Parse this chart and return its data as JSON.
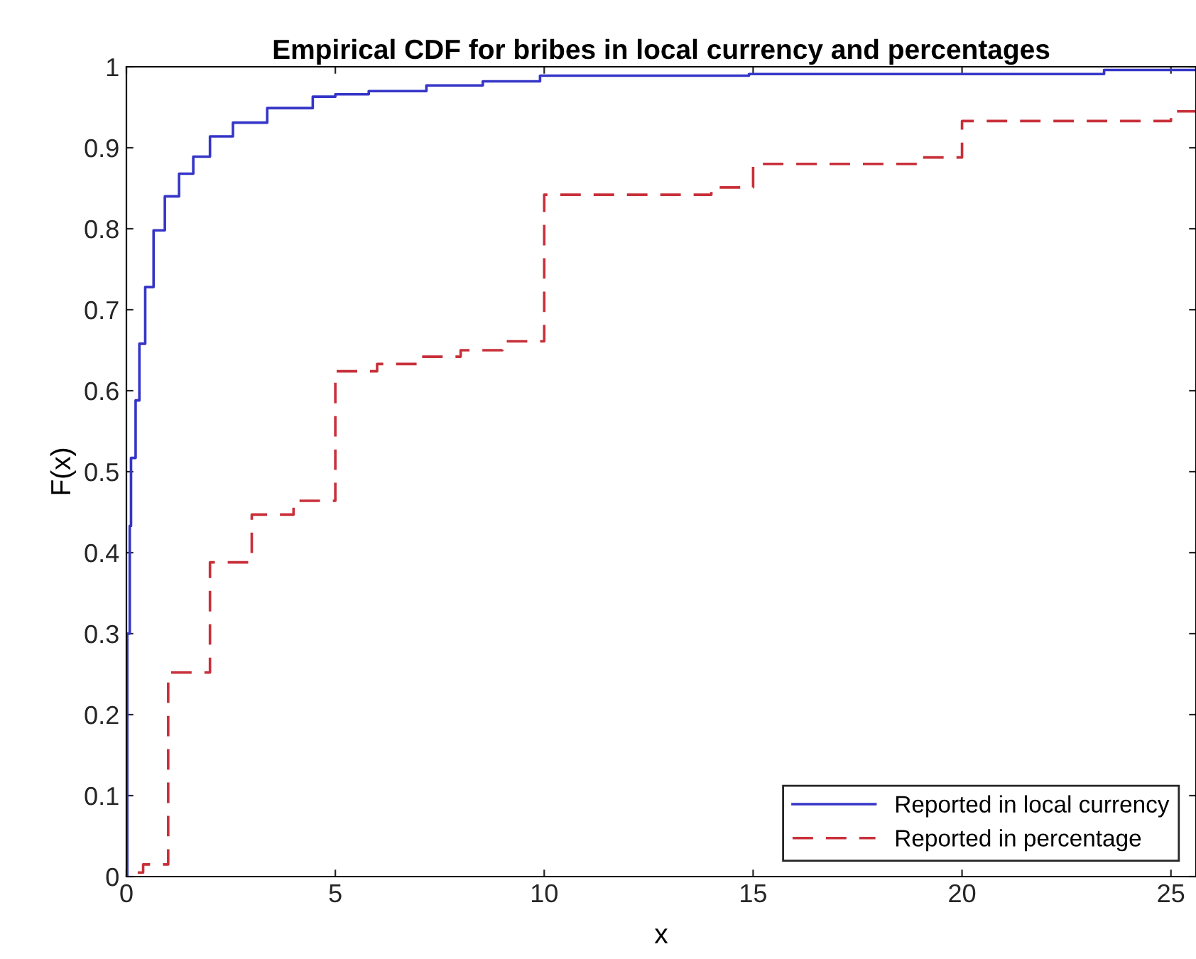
{
  "chart_data": {
    "type": "step",
    "title": "Empirical CDF for bribes in local currency and percentages",
    "xlabel": "x",
    "ylabel": "F(x)",
    "series": [
      {
        "name": "Reported in local currency",
        "color": "#3535c8",
        "line_style": "solid",
        "x": [
          0,
          0.02,
          0.08,
          0.11,
          0.22,
          0.31,
          0.45,
          0.65,
          0.92,
          1.26,
          1.6,
          2.0,
          2.55,
          3.37,
          4.46,
          5.0,
          5.8,
          7.18,
          8.53,
          9.9,
          14.9,
          23.4,
          25.6
        ],
        "values": [
          0,
          0.3,
          0.433,
          0.517,
          0.588,
          0.658,
          0.728,
          0.798,
          0.84,
          0.868,
          0.889,
          0.914,
          0.931,
          0.949,
          0.963,
          0.966,
          0.97,
          0.977,
          0.982,
          0.989,
          0.991,
          0.996,
          0.996
        ]
      },
      {
        "name": "Reported in percentage",
        "color": "#c8303a",
        "line_style": "dashed",
        "x": [
          0.27,
          0.4,
          1,
          2,
          3,
          4,
          5,
          6,
          7,
          8,
          9,
          10,
          14,
          15,
          19,
          20,
          25,
          25.6
        ],
        "values": [
          0.005,
          0.015,
          0.252,
          0.388,
          0.447,
          0.464,
          0.624,
          0.633,
          0.642,
          0.65,
          0.661,
          0.842,
          0.851,
          0.88,
          0.888,
          0.933,
          0.945,
          0.945
        ]
      }
    ],
    "xlim": [
      0,
      25.6
    ],
    "xticks": [
      0,
      5,
      10,
      15,
      20,
      25
    ],
    "ylim": [
      0,
      1
    ],
    "yticks": [
      0,
      0.1,
      0.2,
      0.3,
      0.4,
      0.5,
      0.6,
      0.7,
      0.8,
      0.9,
      1
    ],
    "grid": false,
    "legend": "bottom right"
  }
}
